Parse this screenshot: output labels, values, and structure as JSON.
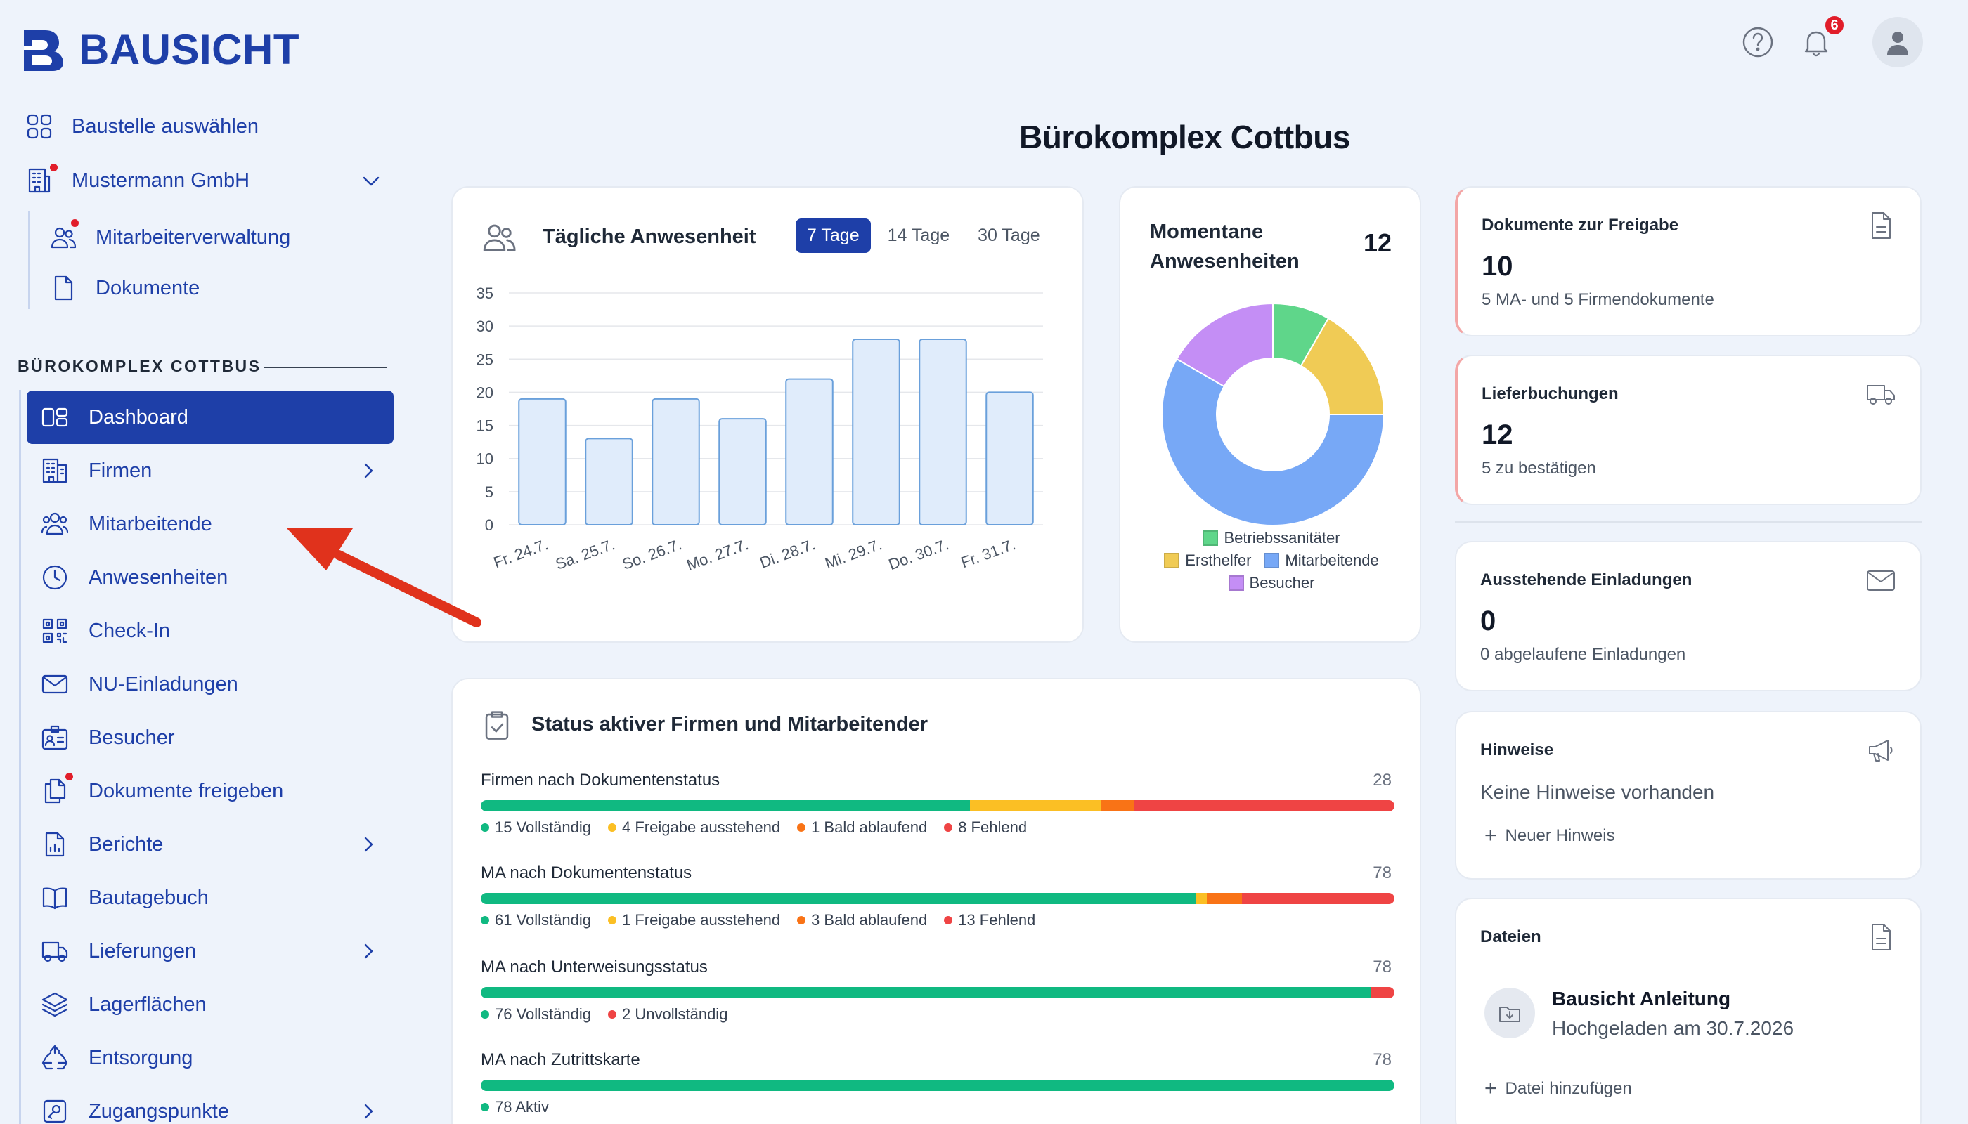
{
  "brand": {
    "name": "BAUSICHT"
  },
  "header": {
    "notification_count": "6"
  },
  "page": {
    "title": "Bürokomplex Cottbus"
  },
  "sidebar": {
    "select_site": "Baustelle auswählen",
    "company": "Mustermann GmbH",
    "company_sub": [
      "Mitarbeiterverwaltung",
      "Dokumente"
    ],
    "section_label": "BÜROKOMPLEX COTTBUS",
    "items": [
      {
        "label": "Dashboard",
        "icon": "dashboard-icon",
        "active": true
      },
      {
        "label": "Firmen",
        "icon": "building-icon",
        "chevron": true
      },
      {
        "label": "Mitarbeitende",
        "icon": "users-icon"
      },
      {
        "label": "Anwesenheiten",
        "icon": "clock-icon"
      },
      {
        "label": "Check-In",
        "icon": "qr-icon"
      },
      {
        "label": "NU-Einladungen",
        "icon": "mail-icon"
      },
      {
        "label": "Besucher",
        "icon": "visitor-icon"
      },
      {
        "label": "Dokumente freigeben",
        "icon": "documents-icon",
        "badge": true
      },
      {
        "label": "Berichte",
        "icon": "report-icon",
        "chevron": true
      },
      {
        "label": "Bautagebuch",
        "icon": "book-icon"
      },
      {
        "label": "Lieferungen",
        "icon": "truck-icon",
        "chevron": true
      },
      {
        "label": "Lagerflächen",
        "icon": "layers-icon"
      },
      {
        "label": "Entsorgung",
        "icon": "recycle-icon"
      },
      {
        "label": "Zugangspunkte",
        "icon": "access-icon",
        "chevron": true
      }
    ]
  },
  "attendance": {
    "title": "Tägliche Anwesenheit",
    "tabs": [
      "7 Tage",
      "14 Tage",
      "30 Tage"
    ],
    "active_tab": "7 Tage"
  },
  "current": {
    "title_line1": "Momentane",
    "title_line2": "Anwesenheiten",
    "count": "12",
    "legend": [
      "Betriebssanitäter",
      "Ersthelfer",
      "Mitarbeitende",
      "Besucher"
    ]
  },
  "chart_data": [
    {
      "type": "bar",
      "title": "Tägliche Anwesenheit",
      "categories": [
        "Fr. 24.7.",
        "Sa. 25.7.",
        "So. 26.7.",
        "Mo. 27.7.",
        "Di. 28.7.",
        "Mi. 29.7.",
        "Do. 30.7.",
        "Fr. 31.7."
      ],
      "values": [
        19,
        13,
        19,
        16,
        22,
        28,
        28,
        20
      ],
      "ylim": [
        0,
        35
      ],
      "yticks": [
        0,
        5,
        10,
        15,
        20,
        25,
        30,
        35
      ],
      "grid": true,
      "bar_color": "#e0ecfb",
      "bar_stroke": "#6aa0db"
    },
    {
      "type": "pie",
      "title": "Momentane Anwesenheiten",
      "donut": true,
      "labels": [
        "Betriebssanitäter",
        "Ersthelfer",
        "Mitarbeitende",
        "Besucher"
      ],
      "values": [
        1,
        2,
        7,
        2
      ],
      "colors": [
        "#5fd68a",
        "#f0cb55",
        "#77a8f6",
        "#c48ef5"
      ],
      "legend_position": "bottom"
    }
  ],
  "status": {
    "title": "Status aktiver Firmen und Mitarbeitender",
    "rows": [
      {
        "title": "Firmen nach Dokumentenstatus",
        "total": "28",
        "segments": [
          {
            "label": "15 Vollständig",
            "value": 15,
            "color": "#10b981"
          },
          {
            "label": "4 Freigabe ausstehend",
            "value": 4,
            "color": "#fbbf24"
          },
          {
            "label": "1 Bald ablaufend",
            "value": 1,
            "color": "#f97316"
          },
          {
            "label": "8 Fehlend",
            "value": 8,
            "color": "#ef4444"
          }
        ]
      },
      {
        "title": "MA nach Dokumentenstatus",
        "total": "78",
        "segments": [
          {
            "label": "61 Vollständig",
            "value": 61,
            "color": "#10b981"
          },
          {
            "label": "1 Freigabe ausstehend",
            "value": 1,
            "color": "#fbbf24"
          },
          {
            "label": "3 Bald ablaufend",
            "value": 3,
            "color": "#f97316"
          },
          {
            "label": "13 Fehlend",
            "value": 13,
            "color": "#ef4444"
          }
        ]
      },
      {
        "title": "MA nach Unterweisungsstatus",
        "total": "78",
        "segments": [
          {
            "label": "76 Vollständig",
            "value": 76,
            "color": "#10b981"
          },
          {
            "label": "2 Unvollständig",
            "value": 2,
            "color": "#ef4444"
          }
        ]
      },
      {
        "title": "MA nach Zutrittskarte",
        "total": "78",
        "segments": [
          {
            "label": "78 Aktiv",
            "value": 78,
            "color": "#10b981"
          }
        ]
      }
    ]
  },
  "stats": {
    "docs": {
      "label": "Dokumente zur Freigabe",
      "value": "10",
      "sub": "5 MA- und 5 Firmendokumente"
    },
    "deliveries": {
      "label": "Lieferbuchungen",
      "value": "12",
      "sub": "5 zu bestätigen"
    },
    "invites": {
      "label": "Ausstehende Einladungen",
      "value": "0",
      "sub": "0 abgelaufene Einladungen"
    }
  },
  "notes": {
    "label": "Hinweise",
    "empty": "Keine Hinweise vorhanden",
    "add": "Neuer Hinweis"
  },
  "files": {
    "label": "Dateien",
    "file_name": "Bausicht Anleitung",
    "file_meta": "Hochgeladen am 30.7.2026",
    "add": "Datei hinzufügen"
  },
  "colors": {
    "brand": "#1e3fa8",
    "arrow": "#e0321c"
  }
}
